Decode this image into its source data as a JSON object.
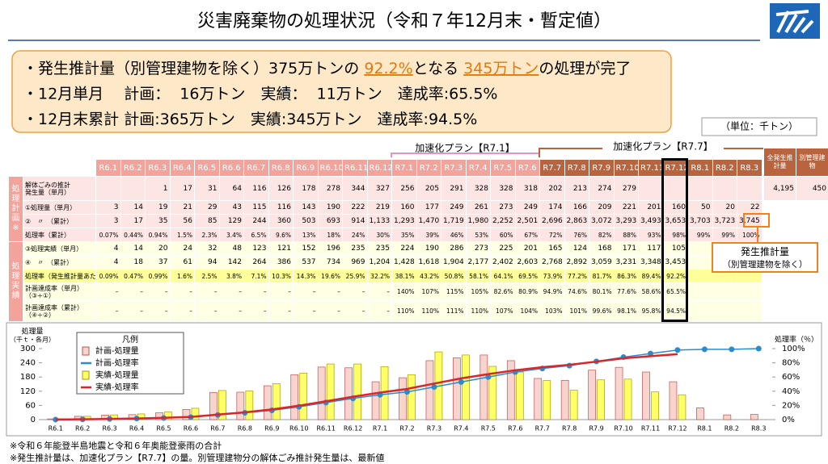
{
  "header": {
    "title": "災害廃棄物の処理状況（令和７年12月末・暫定値）"
  },
  "summary": {
    "lines": [
      [
        {
          "text": "・発生推計量（別管理建物を除く）375万トンの "
        },
        {
          "text": "92.2%",
          "highlight": true
        },
        {
          "text": "となる "
        },
        {
          "text": "345万トン",
          "highlight": true
        },
        {
          "text": "の処理が完了"
        }
      ],
      [
        {
          "text": "・12月単月　 計画：  16万トン　実績：  11万トン　達成率:65.5%"
        }
      ],
      [
        {
          "text": "・12月末累計 計画:365万トン　実績:345万トン　達成率:94.5%"
        }
      ]
    ]
  },
  "unit_note": "（単位：千トン）",
  "plan_labels": [
    "加速化プラン【R7.1】",
    "加速化プラン【R7.7】"
  ],
  "callout": [
    "発生推計量",
    "（別管理建物を除く）"
  ],
  "table": {
    "columns": [
      "R6.1",
      "R6.2",
      "R6.3",
      "R6.4",
      "R6.5",
      "R6.6",
      "R6.7",
      "R6.8",
      "R6.9",
      "R6.10",
      "R6.11",
      "R6.12",
      "R7.1",
      "R7.2",
      "R7.3",
      "R7.4",
      "R7.5",
      "R7.6",
      "R7.7",
      "R7.8",
      "R7.9",
      "R7.10",
      "R7.11",
      "R7.12",
      "R8.1",
      "R8.2",
      "R8.3"
    ],
    "extra_columns": [
      "全発生推計量",
      "別管理建物"
    ],
    "groups": [
      {
        "label": "処理計画※",
        "rows": [
          {
            "label": [
              "解体ごみの推計",
              "発生量（単月）"
            ],
            "cells": [
              null,
              null,
              "1",
              "17",
              "31",
              "64",
              "116",
              "126",
              "178",
              "278",
              "344",
              "327",
              "256",
              "205",
              "291",
              "328",
              "328",
              "318",
              "202",
              "213",
              "274",
              "279",
              null,
              null,
              null,
              null,
              null
            ],
            "extra": [
              "4,195",
              "450"
            ]
          },
          {
            "label": [
              "①処理量（単月）"
            ],
            "cells": [
              "3",
              "14",
              "19",
              "21",
              "29",
              "43",
              "115",
              "116",
              "143",
              "190",
              "222",
              "219",
              "160",
              "177",
              "249",
              "261",
              "273",
              "249",
              "174",
              "166",
              "209",
              "221",
              "201",
              "160",
              "50",
              "20",
              "22"
            ]
          },
          {
            "label": [
              "②　〃　（累計）"
            ],
            "cells": [
              "3",
              "17",
              "35",
              "56",
              "85",
              "129",
              "244",
              "360",
              "503",
              "693",
              "914",
              "1,133",
              "1,293",
              "1,470",
              "1,719",
              "1,980",
              "2,252",
              "2,501",
              "2,696",
              "2,863",
              "3,072",
              "3,293",
              "3,493",
              "3,653",
              "3,703",
              "3,723",
              "3,745"
            ]
          },
          {
            "label": [
              "処理率（累計）"
            ],
            "cells": [
              "0.07%",
              "0.44%",
              "0.94%",
              "1.5%",
              "2.3%",
              "3.4%",
              "6.5%",
              "9.6%",
              "13%",
              "18%",
              "24%",
              "30%",
              "35%",
              "39%",
              "46%",
              "53%",
              "60%",
              "67%",
              "72%",
              "76%",
              "82%",
              "88%",
              "93%",
              "98%",
              "99%",
              "99%",
              "100%"
            ]
          }
        ]
      },
      {
        "label": "処理実績",
        "rows": [
          {
            "label": [
              "③処理実績（単月）"
            ],
            "cells": [
              "4",
              "14",
              "20",
              "24",
              "32",
              "48",
              "123",
              "121",
              "152",
              "196",
              "235",
              "235",
              "224",
              "190",
              "286",
              "273",
              "225",
              "201",
              "165",
              "124",
              "168",
              "171",
              "117",
              "105",
              null,
              null,
              null
            ]
          },
          {
            "label": [
              "④　〃　（累計）"
            ],
            "cells": [
              "4",
              "18",
              "37",
              "61",
              "94",
              "142",
              "264",
              "386",
              "537",
              "734",
              "969",
              "1,204",
              "1,428",
              "1,618",
              "1,904",
              "2,177",
              "2,402",
              "2,603",
              "2,768",
              "2,892",
              "3,059",
              "3,231",
              "3,348",
              "3,453",
              null,
              null,
              null
            ]
          },
          {
            "label": [
              "処理率（発生推計量あたり）"
            ],
            "cells": [
              "0.09%",
              "0.47%",
              "0.99%",
              "1.6%",
              "2.5%",
              "3.8%",
              "7.1%",
              "10.3%",
              "14.3%",
              "19.6%",
              "25.9%",
              "32.2%",
              "38.1%",
              "43.2%",
              "50.8%",
              "58.1%",
              "64.1%",
              "69.5%",
              "73.9%",
              "77.2%",
              "81.7%",
              "86.3%",
              "89.4%",
              "92.2%",
              null,
              null,
              null
            ]
          },
          {
            "label": [
              "計画達成率（単月）",
              "（③÷①）"
            ],
            "cells": [
              "–",
              "–",
              "–",
              "–",
              "–",
              "–",
              "–",
              "–",
              "–",
              "–",
              "–",
              "–",
              "140%",
              "107%",
              "115%",
              "105%",
              "82.6%",
              "80.9%",
              "94.9%",
              "74.6%",
              "80.1%",
              "77.6%",
              "58.6%",
              "65.5%",
              null,
              null,
              null
            ]
          },
          {
            "label": [
              "計画達成率（累計）",
              "（④÷②）"
            ],
            "cells": [
              "–",
              "–",
              "–",
              "–",
              "–",
              "–",
              "–",
              "–",
              "–",
              "–",
              "–",
              "–",
              "110%",
              "110%",
              "111%",
              "110%",
              "107%",
              "104%",
              "103%",
              "101%",
              "99.6%",
              "98.1%",
              "95.8%",
              "94.5%",
              null,
              null,
              null
            ]
          }
        ]
      }
    ]
  },
  "chart_data": {
    "type": "bar_line",
    "ylabel": [
      "処理量",
      "（千ｔ・各月）"
    ],
    "y2label": "処理率（％）",
    "legend_title": "凡例",
    "categories": [
      "R6.1",
      "R6.2",
      "R6.3",
      "R6.4",
      "R6.5",
      "R6.6",
      "R6.7",
      "R6.8",
      "R6.9",
      "R6.10",
      "R6.11",
      "R6.12",
      "R7.1",
      "R7.2",
      "R7.3",
      "R7.4",
      "R7.5",
      "R7.6",
      "R7.7",
      "R7.8",
      "R7.9",
      "R7.10",
      "R7.11",
      "R7.12",
      "R8.1",
      "R8.2",
      "R8.3"
    ],
    "ylim": [
      0,
      300
    ],
    "yticks": [
      0,
      60,
      120,
      180,
      240,
      300
    ],
    "y2lim": [
      0,
      100
    ],
    "y2ticks": [
      {
        "value": 0,
        "label": "0%"
      },
      {
        "value": 20,
        "label": "20%"
      },
      {
        "value": 40,
        "label": "40%"
      },
      {
        "value": 60,
        "label": "60%"
      },
      {
        "value": 80,
        "label": "80%"
      },
      {
        "value": 100,
        "label": "100%"
      }
    ],
    "series": [
      {
        "name": "計画-処理量",
        "kind": "bar",
        "color": "#f8d4cf",
        "values": [
          3,
          14,
          19,
          21,
          29,
          43,
          115,
          116,
          143,
          190,
          222,
          219,
          160,
          177,
          249,
          261,
          273,
          249,
          174,
          166,
          209,
          221,
          201,
          160,
          50,
          20,
          22
        ]
      },
      {
        "name": "計画-処理率",
        "kind": "line",
        "axis": "y2",
        "color": "#2e8bc9",
        "values": [
          0.07,
          0.44,
          0.94,
          1.5,
          2.3,
          3.4,
          6.5,
          9.6,
          13,
          18,
          24,
          30,
          35,
          39,
          46,
          53,
          60,
          67,
          72,
          76,
          82,
          88,
          93,
          98,
          99,
          99,
          100
        ]
      },
      {
        "name": "実績-処理量",
        "kind": "bar",
        "color": "#ffff66",
        "values": [
          4,
          14,
          20,
          24,
          32,
          48,
          123,
          121,
          152,
          196,
          235,
          235,
          224,
          190,
          286,
          273,
          225,
          201,
          165,
          124,
          168,
          171,
          117,
          105,
          null,
          null,
          null
        ]
      },
      {
        "name": "実績-処理率",
        "kind": "line",
        "axis": "y2",
        "color": "#d9262b",
        "values": [
          0.09,
          0.47,
          0.99,
          1.6,
          2.5,
          3.8,
          7.1,
          10.3,
          14.3,
          19.6,
          25.9,
          32.2,
          38.1,
          43.2,
          50.8,
          58.1,
          64.1,
          69.5,
          73.9,
          77.2,
          81.7,
          86.3,
          89.4,
          92.2,
          null,
          null,
          null
        ]
      }
    ]
  },
  "footnotes": [
    "※令和６年能登半島地震と令和６年奥能登豪雨の合計",
    "※発生推計量は、加速化プラン【R7.7】の量。別管理建物分の解体ごみ推計発生量は、最新値"
  ]
}
